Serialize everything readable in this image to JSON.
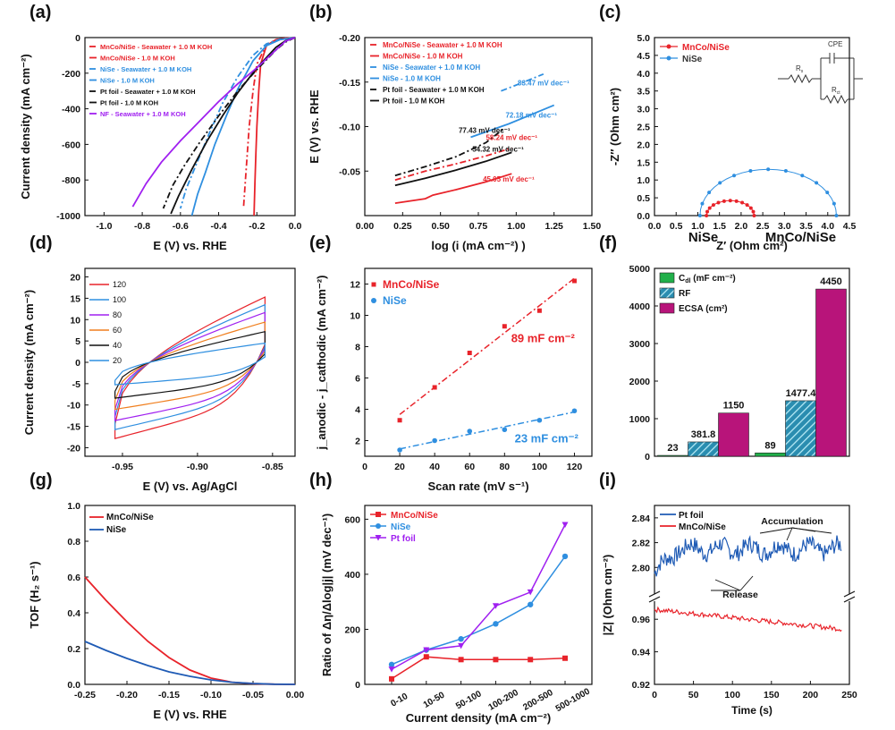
{
  "chart_data": [
    {
      "id": "a",
      "panel_label": "(a)",
      "type": "line",
      "xlabel": "E (V) vs. RHE",
      "ylabel": "Current density (mA cm⁻²)",
      "xlim": [
        -1.1,
        0.0
      ],
      "ylim": [
        -1000,
        0
      ],
      "xticks": [
        -1.0,
        -0.8,
        -0.6,
        -0.4,
        -0.2,
        0.0
      ],
      "xtick_labels": [
        "-1.0",
        "-0.8",
        "-0.6",
        "-0.4",
        "-0.2",
        "0.0"
      ],
      "yticks": [
        0,
        -200,
        -400,
        -600,
        -800,
        -1000
      ],
      "ytick_labels": [
        "0",
        "-200",
        "-400",
        "-600",
        "-800",
        "-1000"
      ],
      "legend": "top-left",
      "series": [
        {
          "name": "MnCo/NiSe - Seawater + 1.0 M KOH",
          "color": "#e8232a",
          "dash": "dashdot",
          "x": [
            0.0,
            -0.05,
            -0.1,
            -0.15,
            -0.2,
            -0.22,
            -0.24,
            -0.25,
            -0.26,
            -0.27
          ],
          "y": [
            0,
            -4,
            -12,
            -40,
            -150,
            -300,
            -500,
            -650,
            -800,
            -960
          ]
        },
        {
          "name": "MnCo/NiSe - 1.0 M KOH",
          "color": "#e8232a",
          "dash": "solid",
          "x": [
            0.0,
            -0.05,
            -0.1,
            -0.15,
            -0.18,
            -0.19,
            -0.2,
            -0.205,
            -0.21,
            -0.215
          ],
          "y": [
            0,
            -4,
            -12,
            -45,
            -150,
            -300,
            -500,
            -650,
            -820,
            -1000
          ]
        },
        {
          "name": "NiSe - Seawater + 1.0 M KOH",
          "color": "#2f8fe0",
          "dash": "dashdot",
          "x": [
            0.0,
            -0.08,
            -0.15,
            -0.22,
            -0.3,
            -0.38,
            -0.45,
            -0.52,
            -0.57,
            -0.6
          ],
          "y": [
            0,
            -10,
            -35,
            -100,
            -220,
            -370,
            -540,
            -720,
            -850,
            -960
          ]
        },
        {
          "name": "NiSe - 1.0 M KOH",
          "color": "#2f8fe0",
          "dash": "solid",
          "x": [
            0.0,
            -0.08,
            -0.15,
            -0.22,
            -0.3,
            -0.36,
            -0.42,
            -0.47,
            -0.51,
            -0.54
          ],
          "y": [
            0,
            -12,
            -45,
            -130,
            -290,
            -440,
            -600,
            -760,
            -880,
            -1000
          ]
        },
        {
          "name": "Pt foil - Seawater + 1.0 M KOH",
          "color": "#111111",
          "dash": "dashdot",
          "x": [
            0.0,
            -0.05,
            -0.1,
            -0.2,
            -0.3,
            -0.4,
            -0.5,
            -0.58,
            -0.64,
            -0.69
          ],
          "y": [
            0,
            -25,
            -70,
            -180,
            -300,
            -440,
            -590,
            -720,
            -830,
            -960
          ]
        },
        {
          "name": "Pt foil - 1.0 M KOH",
          "color": "#111111",
          "dash": "solid",
          "x": [
            0.0,
            -0.05,
            -0.1,
            -0.2,
            -0.3,
            -0.38,
            -0.46,
            -0.54,
            -0.61,
            -0.65
          ],
          "y": [
            0,
            -18,
            -55,
            -170,
            -310,
            -440,
            -580,
            -740,
            -890,
            -990
          ]
        },
        {
          "name": "NF - Seawater + 1.0 M KOH",
          "color": "#a020f0",
          "dash": "solid",
          "x": [
            0.0,
            -0.05,
            -0.1,
            -0.2,
            -0.3,
            -0.4,
            -0.5,
            -0.6,
            -0.7,
            -0.78,
            -0.85
          ],
          "y": [
            0,
            -20,
            -70,
            -170,
            -260,
            -360,
            -470,
            -580,
            -700,
            -820,
            -950
          ]
        }
      ]
    },
    {
      "id": "b",
      "panel_label": "(b)",
      "type": "line",
      "xlabel": "log (i (mA cm⁻²) )",
      "ylabel": "E (V) vs. RHE",
      "xlim": [
        0.0,
        1.5
      ],
      "ylim": [
        0.0,
        -0.2
      ],
      "y_inverted": true,
      "xticks": [
        0.0,
        0.25,
        0.5,
        0.75,
        1.0,
        1.25,
        1.5
      ],
      "xtick_labels": [
        "0.00",
        "0.25",
        "0.50",
        "0.75",
        "1.00",
        "1.25",
        "1.50"
      ],
      "yticks": [
        -0.05,
        -0.1,
        -0.15,
        -0.2
      ],
      "ytick_labels": [
        "-0.05",
        "-0.10",
        "-0.15",
        "-0.20"
      ],
      "legend": "top-left",
      "series": [
        {
          "name": "MnCo/NiSe - Seawater + 1.0 M KOH",
          "color": "#e8232a",
          "dash": "dashdot",
          "x": [
            0.2,
            0.4,
            0.6,
            0.8,
            0.97
          ],
          "y": [
            -0.04,
            -0.05,
            -0.058,
            -0.067,
            -0.076
          ]
        },
        {
          "name": "MnCo/NiSe - 1.0 M KOH",
          "color": "#e8232a",
          "dash": "solid",
          "x": [
            0.2,
            0.4,
            0.45,
            0.6,
            0.8,
            0.97
          ],
          "y": [
            -0.014,
            -0.019,
            -0.023,
            -0.029,
            -0.038,
            -0.047
          ]
        },
        {
          "name": "NiSe - Seawater + 1.0 M KOH",
          "color": "#2f8fe0",
          "dash": "dashdot",
          "x": [
            0.9,
            1.05,
            1.18
          ],
          "y": [
            -0.14,
            -0.15,
            -0.159
          ]
        },
        {
          "name": "NiSe - 1.0 M KOH",
          "color": "#2f8fe0",
          "dash": "solid",
          "x": [
            0.7,
            0.95,
            1.25
          ],
          "y": [
            -0.088,
            -0.103,
            -0.124
          ]
        },
        {
          "name": "Pt foil - Seawater + 1.0 M KOH",
          "color": "#111111",
          "dash": "dashdot",
          "x": [
            0.2,
            0.4,
            0.6,
            0.8,
            0.92
          ],
          "y": [
            -0.045,
            -0.055,
            -0.066,
            -0.082,
            -0.098
          ]
        },
        {
          "name": "Pt foil - 1.0 M KOH",
          "color": "#111111",
          "dash": "solid",
          "x": [
            0.2,
            0.4,
            0.6,
            0.8,
            0.97
          ],
          "y": [
            -0.034,
            -0.042,
            -0.051,
            -0.061,
            -0.071
          ]
        }
      ],
      "annotations": [
        {
          "text": "83.47 mV dec⁻¹",
          "color": "#2f8fe0",
          "x": 1.18,
          "y": -0.146
        },
        {
          "text": "72.18 mV dec⁻¹",
          "color": "#2f8fe0",
          "x": 1.1,
          "y": -0.11
        },
        {
          "text": "77.43 mV dec⁻¹",
          "color": "#111111",
          "x": 0.79,
          "y": -0.093
        },
        {
          "text": "58.24 mV dec⁻¹",
          "color": "#e8232a",
          "x": 0.97,
          "y": -0.085
        },
        {
          "text": "54.32 mV dec⁻¹",
          "color": "#111111",
          "x": 0.88,
          "y": -0.072
        },
        {
          "text": "45.05 mV dec⁻¹",
          "color": "#e8232a",
          "x": 0.95,
          "y": -0.038
        }
      ]
    },
    {
      "id": "c",
      "panel_label": "(c)",
      "type": "scatter",
      "xlabel": "Z′ (Ohm cm²)",
      "ylabel": "-Z″ (Ohm cm²)",
      "xlim": [
        0.0,
        4.5
      ],
      "ylim": [
        0.0,
        5.0
      ],
      "xticks": [
        0.0,
        0.5,
        1.0,
        1.5,
        2.0,
        2.5,
        3.0,
        3.5,
        4.0,
        4.5
      ],
      "xtick_labels": [
        "0.0",
        "0.5",
        "1.0",
        "1.5",
        "2.0",
        "2.5",
        "3.0",
        "3.5",
        "4.0",
        "4.5"
      ],
      "yticks": [
        0.0,
        0.5,
        1.0,
        1.5,
        2.0,
        2.5,
        3.0,
        3.5,
        4.0,
        4.5,
        5.0
      ],
      "ytick_labels": [
        "0.0",
        "0.5",
        "1.0",
        "1.5",
        "2.0",
        "2.5",
        "3.0",
        "3.5",
        "4.0",
        "4.5",
        "5.0"
      ],
      "legend": "top-left",
      "inset_labels": [
        "CPE",
        "R",
        "s",
        "R",
        "ct"
      ],
      "series": [
        {
          "name": "MnCo/NiSe",
          "color": "#e8232a",
          "marker": "circle",
          "semicircle": {
            "x_start": 1.2,
            "x_end": 2.3,
            "peak": 0.42
          }
        },
        {
          "name": "NiSe",
          "color": "#2f8fe0",
          "marker": "circle",
          "semicircle": {
            "x_start": 1.05,
            "x_end": 4.2,
            "peak": 1.3
          }
        }
      ]
    },
    {
      "id": "d",
      "panel_label": "(d)",
      "type": "line",
      "xlabel": "E (V) vs. Ag/AgCl",
      "ylabel": "Current density (mA cm⁻²)",
      "xlim": [
        -0.975,
        -0.835
      ],
      "ylim": [
        -22,
        22
      ],
      "xticks": [
        -0.95,
        -0.9,
        -0.85
      ],
      "xtick_labels": [
        "-0.95",
        "-0.90",
        "-0.85"
      ],
      "yticks": [
        20,
        15,
        10,
        5,
        0,
        -5,
        -10,
        -15,
        -20
      ],
      "ytick_labels": [
        "20",
        "15",
        "10",
        "5",
        "0",
        "-5",
        "-10",
        "-15",
        "-20"
      ],
      "legend": "top-left",
      "series": [
        {
          "name": "120",
          "color": "#e8232a",
          "amplitude": 17
        },
        {
          "name": "100",
          "color": "#2f8fe0",
          "amplitude": 15
        },
        {
          "name": "80",
          "color": "#a020f0",
          "amplitude": 13
        },
        {
          "name": "60",
          "color": "#f07f1f",
          "amplitude": 10.5
        },
        {
          "name": "40",
          "color": "#111111",
          "amplitude": 8
        },
        {
          "name": "20",
          "color": "#2f8fe0",
          "amplitude": 5
        }
      ]
    },
    {
      "id": "e",
      "panel_label": "(e)",
      "type": "scatter",
      "xlabel": "Scan rate (mV s⁻¹)",
      "ylabel": "j_anodic - j_cathodic (mA cm⁻²)",
      "xlim": [
        0,
        130
      ],
      "ylim": [
        1,
        13
      ],
      "xticks": [
        0,
        20,
        40,
        60,
        80,
        100,
        120
      ],
      "xtick_labels": [
        "0",
        "20",
        "40",
        "60",
        "80",
        "100",
        "120"
      ],
      "yticks": [
        2,
        4,
        6,
        8,
        10,
        12
      ],
      "ytick_labels": [
        "2",
        "4",
        "6",
        "8",
        "10",
        "12"
      ],
      "legend": "top-left",
      "series": [
        {
          "name": "MnCo/NiSe",
          "color": "#e8232a",
          "marker": "square",
          "x": [
            20,
            40,
            60,
            80,
            100,
            120
          ],
          "y": [
            3.3,
            5.4,
            7.6,
            9.3,
            10.3,
            12.2
          ],
          "fit_label": "89 mF cm⁻²"
        },
        {
          "name": "NiSe",
          "color": "#2f8fe0",
          "marker": "circle",
          "x": [
            20,
            40,
            60,
            80,
            100,
            120
          ],
          "y": [
            1.4,
            2.0,
            2.6,
            2.7,
            3.3,
            3.9
          ],
          "fit_label": "23 mF cm⁻²"
        }
      ]
    },
    {
      "id": "f",
      "panel_label": "(f)",
      "type": "bar",
      "xlabel": "",
      "ylabel": "",
      "categories": [
        "NiSe",
        "MnCo/NiSe"
      ],
      "ylim": [
        0,
        5000
      ],
      "yticks": [
        0,
        1000,
        2000,
        3000,
        4000,
        5000
      ],
      "ytick_labels": [
        "0",
        "1000",
        "2000",
        "3000",
        "4000",
        "5000"
      ],
      "legend": "top-left",
      "series": [
        {
          "name": "C_dl (mF cm⁻²)",
          "legend_label": "C",
          "legend_sub": "dl",
          "legend_tail": " (mF cm⁻²)",
          "color": "#21b04a",
          "values": [
            23,
            89
          ],
          "value_labels": [
            "23",
            "89"
          ]
        },
        {
          "name": "RF",
          "legend_label": "RF",
          "legend_sub": "",
          "legend_tail": "",
          "color": "#2a8db0",
          "hatch": true,
          "values": [
            381.8,
            1477.4
          ],
          "value_labels": [
            "381.8",
            "1477.4"
          ]
        },
        {
          "name": "ECSA (cm²)",
          "legend_label": "ECSA (cm²)",
          "legend_sub": "",
          "legend_tail": "",
          "color": "#b8147a",
          "values": [
            1150,
            4450
          ],
          "value_labels": [
            "1150",
            "4450"
          ]
        }
      ]
    },
    {
      "id": "g",
      "panel_label": "(g)",
      "type": "line",
      "xlabel": "E (V) vs. RHE",
      "ylabel": "TOF (H₂ s⁻¹)",
      "xlim": [
        -0.25,
        0.0
      ],
      "ylim": [
        0.0,
        1.0
      ],
      "xticks": [
        -0.25,
        -0.2,
        -0.15,
        -0.1,
        -0.05,
        0.0
      ],
      "xtick_labels": [
        "-0.25",
        "-0.20",
        "-0.15",
        "-0.10",
        "-0.05",
        "0.00"
      ],
      "yticks": [
        0.0,
        0.2,
        0.4,
        0.6,
        0.8,
        1.0
      ],
      "ytick_labels": [
        "0.0",
        "0.2",
        "0.4",
        "0.6",
        "0.8",
        "1.0"
      ],
      "legend": "top-left",
      "series": [
        {
          "name": "MnCo/NiSe",
          "color": "#e8232a",
          "x": [
            -0.25,
            -0.225,
            -0.2,
            -0.175,
            -0.15,
            -0.125,
            -0.1,
            -0.075,
            -0.05,
            -0.025,
            0.0
          ],
          "y": [
            0.6,
            0.47,
            0.35,
            0.24,
            0.15,
            0.08,
            0.035,
            0.012,
            0.004,
            0.001,
            0.0
          ]
        },
        {
          "name": "NiSe",
          "color": "#1f5bb5",
          "x": [
            -0.25,
            -0.225,
            -0.2,
            -0.175,
            -0.15,
            -0.125,
            -0.1,
            -0.075,
            -0.05,
            -0.025,
            0.0
          ],
          "y": [
            0.24,
            0.19,
            0.145,
            0.105,
            0.07,
            0.045,
            0.025,
            0.012,
            0.005,
            0.001,
            0.0
          ]
        }
      ]
    },
    {
      "id": "h",
      "panel_label": "(h)",
      "type": "line",
      "xlabel": "Current density (mA cm⁻²)",
      "ylabel": "Ratio of Δη/Δlog|j| (mV dec⁻¹)",
      "categories": [
        "0-10",
        "10-50",
        "50-100",
        "100-200",
        "200-500",
        "500-1000"
      ],
      "ylim": [
        0,
        650
      ],
      "yticks": [
        0,
        200,
        400,
        600
      ],
      "ytick_labels": [
        "0",
        "200",
        "400",
        "600"
      ],
      "legend": "top-left",
      "series": [
        {
          "name": "MnCo/NiSe",
          "color": "#e8232a",
          "marker": "square",
          "values": [
            20,
            100,
            90,
            90,
            90,
            95
          ]
        },
        {
          "name": "NiSe",
          "color": "#2f8fe0",
          "marker": "circle",
          "values": [
            72,
            125,
            165,
            220,
            290,
            465
          ]
        },
        {
          "name": "Pt foil",
          "color": "#a020f0",
          "marker": "triangle",
          "values": [
            55,
            125,
            140,
            285,
            335,
            580
          ]
        }
      ]
    },
    {
      "id": "i",
      "panel_label": "(i)",
      "type": "line",
      "xlabel": "Time (s)",
      "ylabel": "|Z| (Ohm cm⁻²)",
      "xlim": [
        0,
        250
      ],
      "y_break": true,
      "ylim_top": [
        2.78,
        2.85
      ],
      "ylim_bottom": [
        0.92,
        0.97
      ],
      "xticks": [
        0,
        50,
        100,
        150,
        200,
        250
      ],
      "xtick_labels": [
        "0",
        "50",
        "100",
        "150",
        "200",
        "250"
      ],
      "yticks": [
        0.92,
        0.94,
        0.96,
        2.8,
        2.82,
        2.84
      ],
      "ytick_labels": [
        "0.92",
        "0.94",
        "0.96",
        "2.80",
        "2.82",
        "2.84"
      ],
      "legend": "top-left",
      "annotations": [
        "Accumulation",
        "Release"
      ],
      "series": [
        {
          "name": "Pt foil",
          "color": "#1f5bb5",
          "segment": "top",
          "x": [
            0,
            240
          ],
          "y_mean": 2.815,
          "y_start": 2.795,
          "noise": 0.007
        },
        {
          "name": "MnCo/NiSe",
          "color": "#e8232a",
          "segment": "bottom",
          "x": [
            0,
            240
          ],
          "y": [
            0.966,
            0.954
          ],
          "noise": 0.0015
        }
      ]
    }
  ]
}
